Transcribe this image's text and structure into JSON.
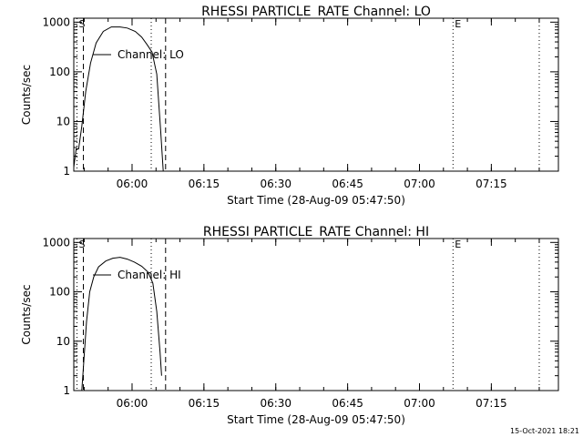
{
  "footer": "15-Oct-2021 18:21",
  "chart_data": [
    {
      "type": "line",
      "title": "RHESSI PARTICLE_RATE Channel: LO",
      "xlabel": "Start Time (28-Aug-09 05:47:50)",
      "ylabel": "Counts/sec",
      "y_scale": "log",
      "ylim": [
        1,
        1200
      ],
      "xlim": [
        "05:47:50",
        "07:29:00"
      ],
      "x_ticks": [
        "06:00",
        "06:15",
        "06:30",
        "06:45",
        "07:00",
        "07:15"
      ],
      "y_ticks": [
        "1",
        "10",
        "100",
        "1000"
      ],
      "grid": false,
      "legend": "Channel: LO",
      "markers": [
        {
          "label": "S",
          "time": "05:48:30",
          "style": "dotted"
        },
        {
          "label": "",
          "time": "05:49:50",
          "style": "dashed"
        },
        {
          "label": "",
          "time": "06:04:00",
          "style": "dotted"
        },
        {
          "label": "",
          "time": "06:07:00",
          "style": "dashed"
        },
        {
          "label": "E",
          "time": "07:07:00",
          "style": "dotted"
        },
        {
          "label": "",
          "time": "07:25:00",
          "style": "dotted"
        }
      ],
      "series": [
        {
          "name": "Channel: LO",
          "x": [
            "05:47:50",
            "05:48:20",
            "05:48:50",
            "05:49:30",
            "05:50:20",
            "05:51:20",
            "05:52:30",
            "05:54:00",
            "05:55:40",
            "05:57:30",
            "05:59:00",
            "06:00:40",
            "06:02:00",
            "06:03:10",
            "06:04:10",
            "06:05:10",
            "06:06:00",
            "06:06:30"
          ],
          "y": [
            1.2,
            2.8,
            2.8,
            8,
            40,
            150,
            380,
            650,
            800,
            800,
            760,
            650,
            500,
            350,
            250,
            90,
            6,
            1
          ]
        }
      ]
    },
    {
      "type": "line",
      "title": "RHESSI PARTICLE_RATE Channel: HI",
      "xlabel": "Start Time (28-Aug-09 05:47:50)",
      "ylabel": "Counts/sec",
      "y_scale": "log",
      "ylim": [
        1,
        1200
      ],
      "xlim": [
        "05:47:50",
        "07:29:00"
      ],
      "x_ticks": [
        "06:00",
        "06:15",
        "06:30",
        "06:45",
        "07:00",
        "07:15"
      ],
      "y_ticks": [
        "1",
        "10",
        "100",
        "1000"
      ],
      "grid": false,
      "legend": "Channel: HI",
      "markers": [
        {
          "label": "S",
          "time": "05:48:30",
          "style": "dotted"
        },
        {
          "label": "",
          "time": "05:49:50",
          "style": "dashed"
        },
        {
          "label": "",
          "time": "06:04:00",
          "style": "dotted"
        },
        {
          "label": "",
          "time": "06:07:00",
          "style": "dashed"
        },
        {
          "label": "E",
          "time": "07:07:00",
          "style": "dotted"
        },
        {
          "label": "",
          "time": "07:25:00",
          "style": "dotted"
        }
      ],
      "series": [
        {
          "name": "Channel: HI",
          "x": [
            "05:49:30",
            "05:50:00",
            "05:50:30",
            "05:51:10",
            "05:52:00",
            "05:53:00",
            "05:54:30",
            "05:56:00",
            "05:57:30",
            "05:59:00",
            "06:00:30",
            "06:02:00",
            "06:03:20",
            "06:04:20",
            "06:05:10",
            "06:05:50",
            "06:06:10"
          ],
          "y": [
            1,
            5,
            25,
            100,
            200,
            320,
            420,
            480,
            500,
            460,
            400,
            330,
            250,
            150,
            40,
            6,
            2
          ]
        }
      ]
    }
  ]
}
